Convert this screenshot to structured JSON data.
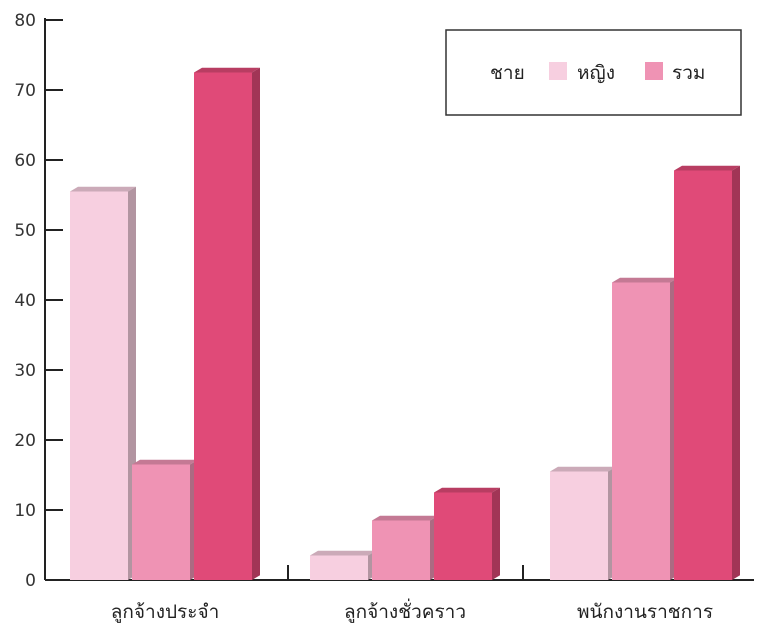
{
  "chart_data": {
    "type": "bar",
    "title": "",
    "xlabel": "",
    "ylabel": "",
    "categories": [
      "ลูกจ้างประจำ",
      "ลูกจ้างชั่วคราว",
      "พนักงานราชการ"
    ],
    "series": [
      {
        "name": "ชาย",
        "values": [
          55.5,
          3.5,
          15.5
        ],
        "color": "#f7cfe0"
      },
      {
        "name": "หญิง",
        "values": [
          16.5,
          8.5,
          42.5
        ],
        "color": "#ef93b4"
      },
      {
        "name": "รวม",
        "values": [
          72.5,
          12.5,
          58.5
        ],
        "color": "#e04a78"
      }
    ],
    "ylim": [
      0,
      80
    ],
    "yticks": [
      "0",
      "10",
      "20",
      "30",
      "40",
      "50",
      "60",
      "70",
      "80"
    ],
    "grid": false,
    "legend_position": "top-right"
  }
}
